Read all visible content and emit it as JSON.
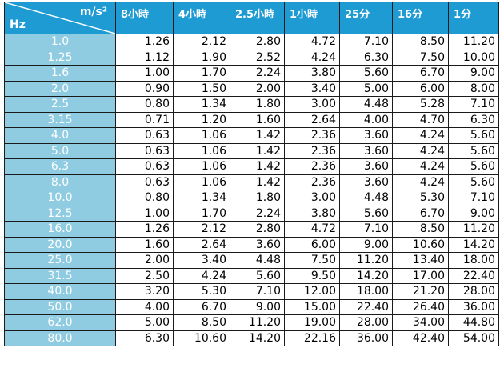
{
  "header": {
    "unit_top": "m/s²",
    "unit_bottom": "Hz",
    "columns": [
      "8小時",
      "4小時",
      "2.5小時",
      "1小時",
      "25分",
      "16分",
      "1分"
    ]
  },
  "rows": [
    {
      "hz": "1.0",
      "values": [
        "1.26",
        "2.12",
        "2.80",
        "4.72",
        "7.10",
        "8.50",
        "11.20"
      ]
    },
    {
      "hz": "1.25",
      "values": [
        "1.12",
        "1.90",
        "2.52",
        "4.24",
        "6.30",
        "7.50",
        "10.00"
      ]
    },
    {
      "hz": "1.6",
      "values": [
        "1.00",
        "1.70",
        "2.24",
        "3.80",
        "5.60",
        "6.70",
        "9.00"
      ]
    },
    {
      "hz": "2.0",
      "values": [
        "0.90",
        "1.50",
        "2.00",
        "3.40",
        "5.00",
        "6.00",
        "8.00"
      ]
    },
    {
      "hz": "2.5",
      "values": [
        "0.80",
        "1.34",
        "1.80",
        "3.00",
        "4.48",
        "5.28",
        "7.10"
      ]
    },
    {
      "hz": "3.15",
      "values": [
        "0.71",
        "1.20",
        "1.60",
        "2.64",
        "4.00",
        "4.70",
        "6.30"
      ]
    },
    {
      "hz": "4.0",
      "values": [
        "0.63",
        "1.06",
        "1.42",
        "2.36",
        "3.60",
        "4.24",
        "5.60"
      ]
    },
    {
      "hz": "5.0",
      "values": [
        "0.63",
        "1.06",
        "1.42",
        "2.36",
        "3.60",
        "4.24",
        "5.60"
      ]
    },
    {
      "hz": "6.3",
      "values": [
        "0.63",
        "1.06",
        "1.42",
        "2.36",
        "3.60",
        "4.24",
        "5.60"
      ]
    },
    {
      "hz": "8.0",
      "values": [
        "0.63",
        "1.06",
        "1.42",
        "2.36",
        "3.60",
        "4.24",
        "5.60"
      ]
    },
    {
      "hz": "10.0",
      "values": [
        "0.80",
        "1.34",
        "1.80",
        "3.00",
        "4.48",
        "5.30",
        "7.10"
      ]
    },
    {
      "hz": "12.5",
      "values": [
        "1.00",
        "1.70",
        "2.24",
        "3.80",
        "5.60",
        "6.70",
        "9.00"
      ]
    },
    {
      "hz": "16.0",
      "values": [
        "1.26",
        "2.12",
        "2.80",
        "4.72",
        "7.10",
        "8.50",
        "11.20"
      ]
    },
    {
      "hz": "20.0",
      "values": [
        "1.60",
        "2.64",
        "3.60",
        "6.00",
        "9.00",
        "10.60",
        "14.20"
      ]
    },
    {
      "hz": "25.0",
      "values": [
        "2.00",
        "3.40",
        "4.48",
        "7.50",
        "11.20",
        "13.40",
        "18.00"
      ]
    },
    {
      "hz": "31.5",
      "values": [
        "2.50",
        "4.24",
        "5.60",
        "9.50",
        "14.20",
        "17.00",
        "22.40"
      ]
    },
    {
      "hz": "40.0",
      "values": [
        "3.20",
        "5.30",
        "7.10",
        "12.00",
        "18.00",
        "21.20",
        "28.00"
      ]
    },
    {
      "hz": "50.0",
      "values": [
        "4.00",
        "6.70",
        "9.00",
        "15.00",
        "22.40",
        "26.40",
        "36.00"
      ]
    },
    {
      "hz": "62.0",
      "values": [
        "5.00",
        "8.50",
        "11.20",
        "19.00",
        "28.00",
        "34.00",
        "44.80"
      ]
    },
    {
      "hz": "80.0",
      "values": [
        "6.30",
        "10.60",
        "14.20",
        "22.16",
        "36.00",
        "42.40",
        "54.00"
      ]
    }
  ],
  "colors": {
    "header_bg": "#1e9bd3",
    "hz_column_bg": "#8fcce2",
    "header_text": "#ffffff"
  }
}
